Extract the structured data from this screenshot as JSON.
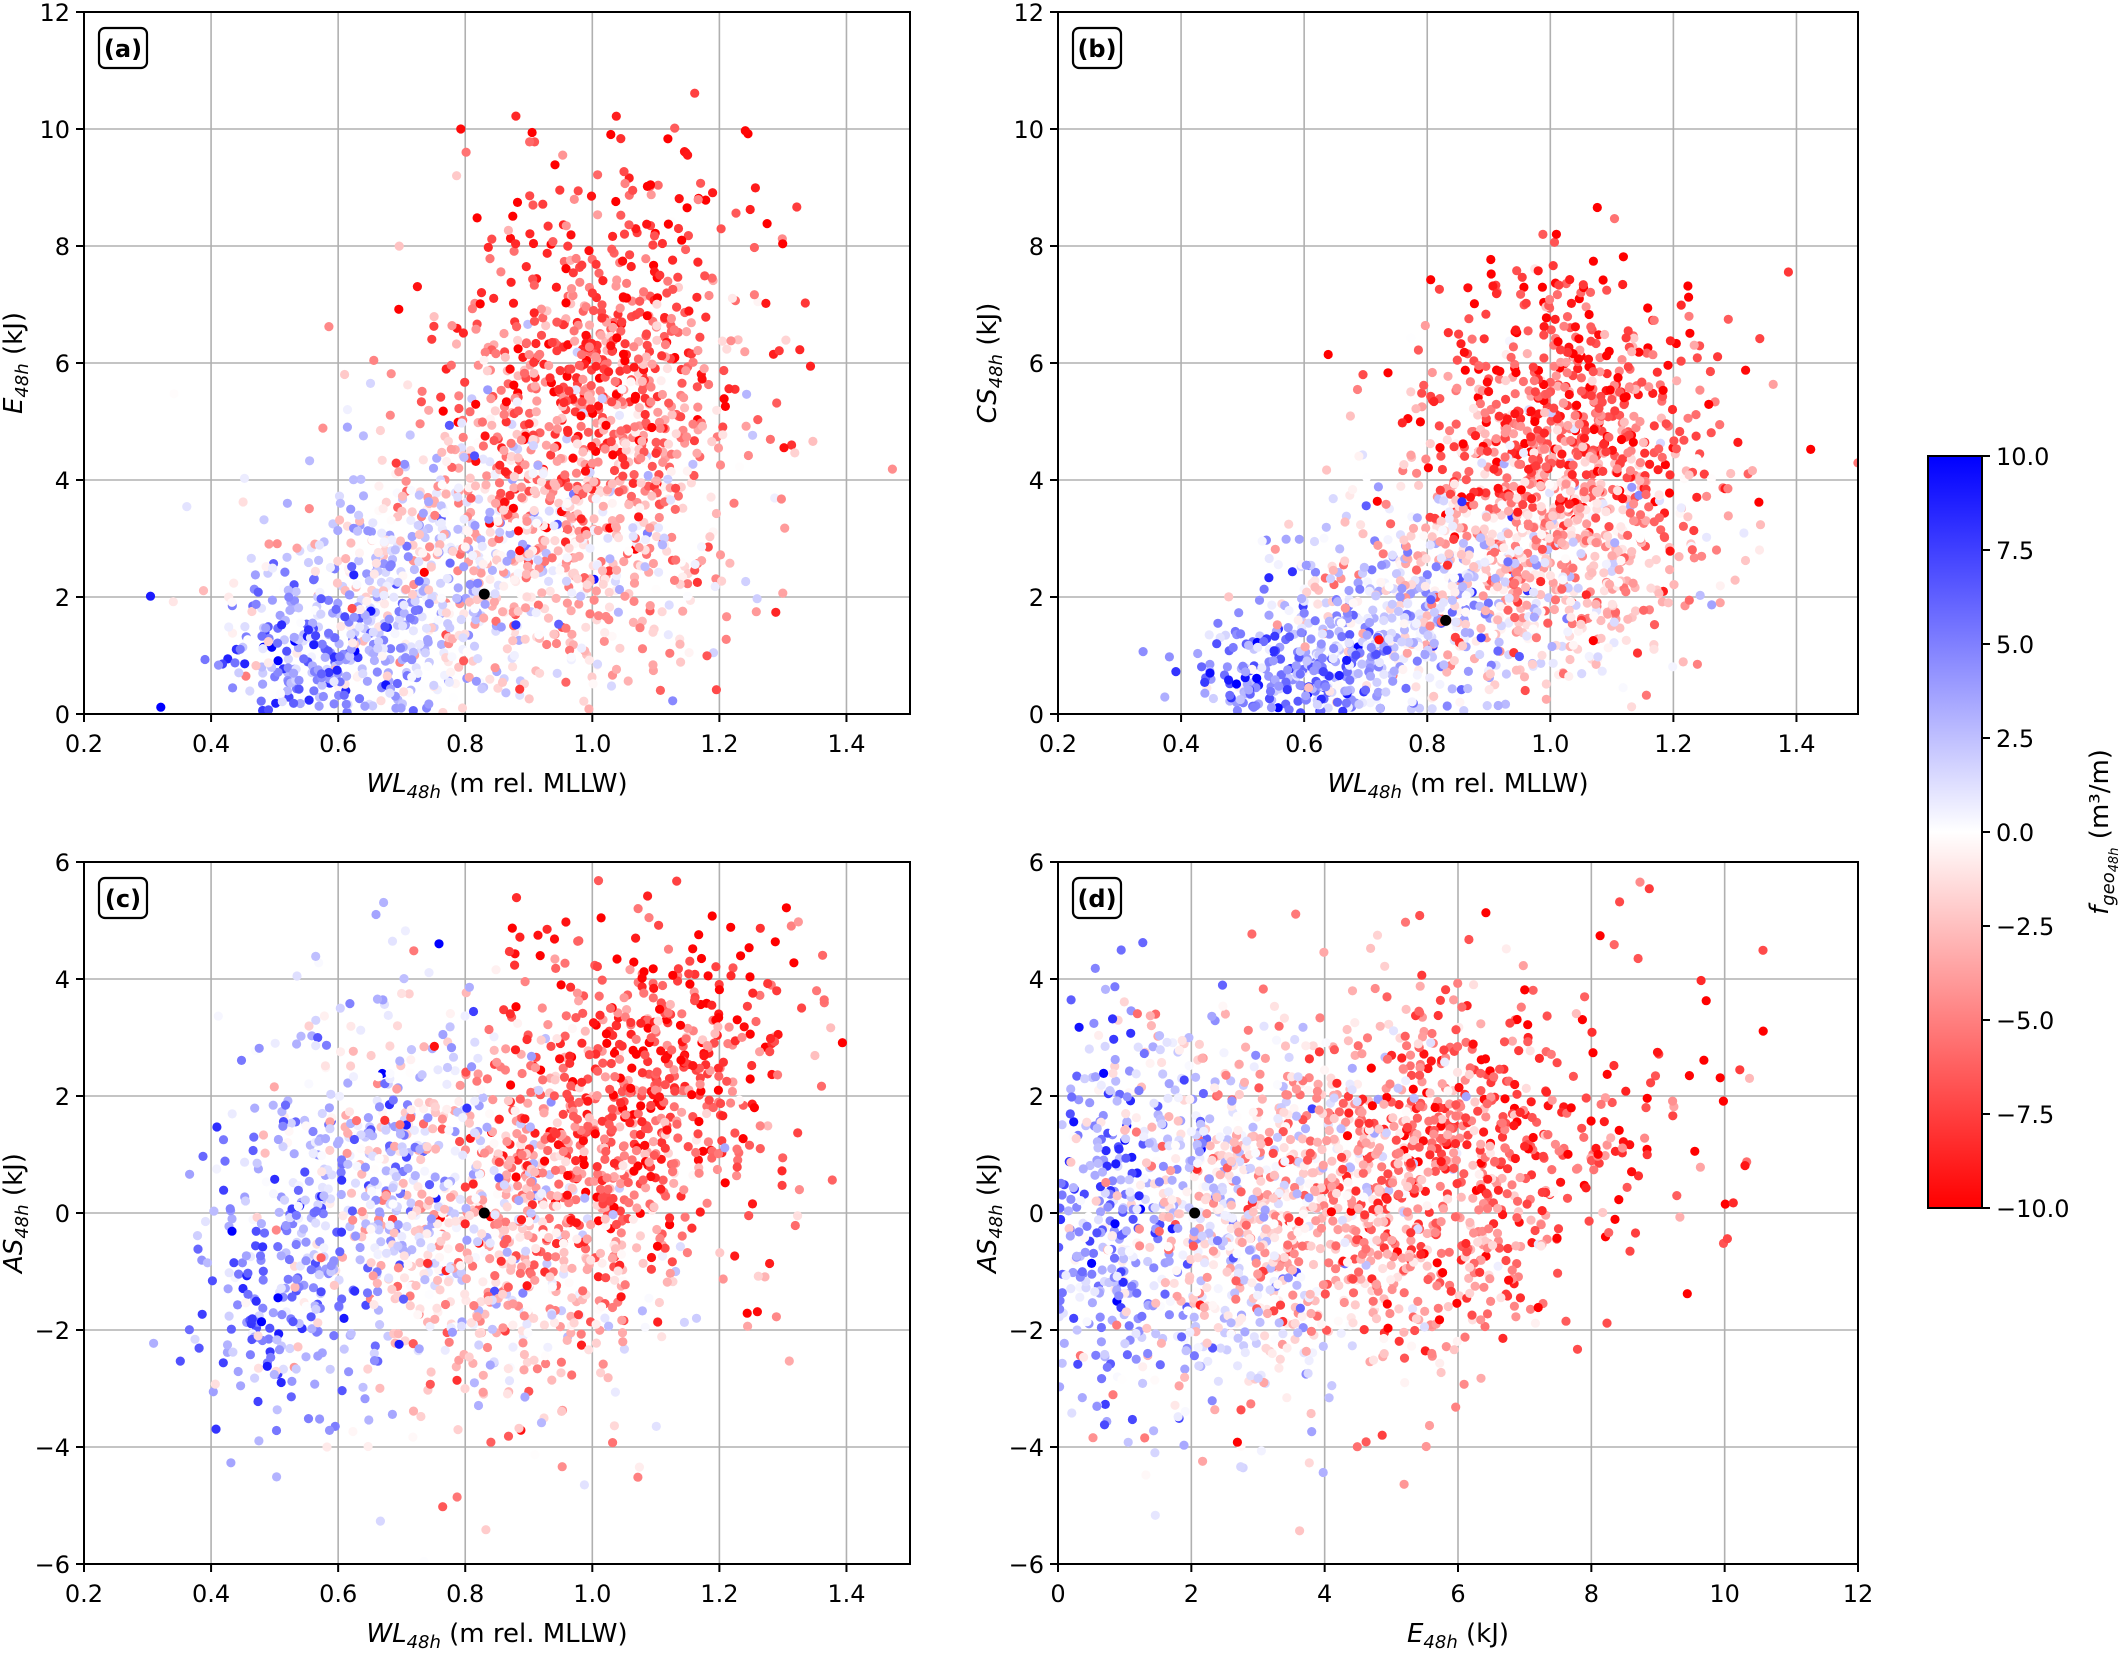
{
  "chart_data": [
    {
      "type": "scatter",
      "panel_label": "(a)",
      "xlabel_main": "WL",
      "xlabel_sub": "48h",
      "xlabel_rest": " (m rel. MLLW)",
      "ylabel_main": "E",
      "ylabel_sub": "48h",
      "ylabel_rest": " (kJ)",
      "xlim": [
        0.2,
        1.5
      ],
      "ylim": [
        0,
        12
      ],
      "xticks": [
        0.2,
        0.4,
        0.6,
        0.8,
        1.0,
        1.2,
        1.4
      ],
      "xtick_labels": [
        "0.2",
        "0.4",
        "0.6",
        "0.8",
        "1.0",
        "1.2",
        "1.4"
      ],
      "yticks": [
        0,
        2,
        4,
        6,
        8,
        10,
        12
      ],
      "ytick_labels": [
        "0",
        "2",
        "4",
        "6",
        "8",
        "10",
        "12"
      ],
      "grid": true,
      "highlight_point": {
        "x": 0.83,
        "y": 2.05,
        "color": "#000000"
      },
      "clusters": [
        {
          "cx": 0.58,
          "cy": 1.0,
          "sx": 0.09,
          "sy": 0.7,
          "f": 4.5,
          "n": 260
        },
        {
          "cx": 0.72,
          "cy": 2.3,
          "sx": 0.12,
          "sy": 1.2,
          "f": 1.0,
          "n": 480
        },
        {
          "cx": 0.98,
          "cy": 3.2,
          "sx": 0.13,
          "sy": 1.4,
          "f": -2.5,
          "n": 620
        },
        {
          "cx": 1.0,
          "cy": 5.8,
          "sx": 0.12,
          "sy": 1.3,
          "f": -6.5,
          "n": 560
        },
        {
          "cx": 1.05,
          "cy": 8.6,
          "sx": 0.13,
          "sy": 0.9,
          "f": -8.5,
          "n": 90
        }
      ]
    },
    {
      "type": "scatter",
      "panel_label": "(b)",
      "xlabel_main": "WL",
      "xlabel_sub": "48h",
      "xlabel_rest": " (m rel. MLLW)",
      "ylabel_main": "CS",
      "ylabel_sub": "48h",
      "ylabel_rest": " (kJ)",
      "xlim": [
        0.2,
        1.5
      ],
      "ylim": [
        0,
        12
      ],
      "xticks": [
        0.2,
        0.4,
        0.6,
        0.8,
        1.0,
        1.2,
        1.4
      ],
      "xtick_labels": [
        "0.2",
        "0.4",
        "0.6",
        "0.8",
        "1.0",
        "1.2",
        "1.4"
      ],
      "yticks": [
        0,
        2,
        4,
        6,
        8,
        10,
        12
      ],
      "ytick_labels": [
        "0",
        "2",
        "4",
        "6",
        "8",
        "10",
        "12"
      ],
      "grid": true,
      "highlight_point": {
        "x": 0.83,
        "y": 1.6,
        "color": "#000000"
      },
      "clusters": [
        {
          "cx": 0.58,
          "cy": 0.6,
          "sx": 0.09,
          "sy": 0.5,
          "f": 5.0,
          "n": 240
        },
        {
          "cx": 0.75,
          "cy": 1.6,
          "sx": 0.12,
          "sy": 0.9,
          "f": 1.5,
          "n": 460
        },
        {
          "cx": 0.98,
          "cy": 2.8,
          "sx": 0.13,
          "sy": 1.1,
          "f": -2.5,
          "n": 620
        },
        {
          "cx": 1.02,
          "cy": 4.8,
          "sx": 0.12,
          "sy": 1.0,
          "f": -6.5,
          "n": 560
        },
        {
          "cx": 1.05,
          "cy": 6.9,
          "sx": 0.12,
          "sy": 0.7,
          "f": -8.5,
          "n": 80
        }
      ]
    },
    {
      "type": "scatter",
      "panel_label": "(c)",
      "xlabel_main": "WL",
      "xlabel_sub": "48h",
      "xlabel_rest": " (m rel. MLLW)",
      "ylabel_main": "AS",
      "ylabel_sub": "48h",
      "ylabel_rest": " (kJ)",
      "xlim": [
        0.2,
        1.5
      ],
      "ylim": [
        -6,
        6
      ],
      "xticks": [
        0.2,
        0.4,
        0.6,
        0.8,
        1.0,
        1.2,
        1.4
      ],
      "xtick_labels": [
        "0.2",
        "0.4",
        "0.6",
        "0.8",
        "1.0",
        "1.2",
        "1.4"
      ],
      "yticks": [
        -6,
        -4,
        -2,
        0,
        2,
        4,
        6
      ],
      "ytick_labels": [
        "−6",
        "−4",
        "−2",
        "0",
        "2",
        "4",
        "6"
      ],
      "grid": true,
      "highlight_point": {
        "x": 0.83,
        "y": 0.0,
        "color": "#000000"
      },
      "clusters": [
        {
          "cx": 0.52,
          "cy": -1.2,
          "sx": 0.08,
          "sy": 1.4,
          "f": 4.5,
          "n": 220
        },
        {
          "cx": 0.68,
          "cy": 0.6,
          "sx": 0.11,
          "sy": 1.7,
          "f": 1.5,
          "n": 460
        },
        {
          "cx": 0.88,
          "cy": -0.6,
          "sx": 0.12,
          "sy": 1.6,
          "f": -2.5,
          "n": 520
        },
        {
          "cx": 1.05,
          "cy": 1.6,
          "sx": 0.12,
          "sy": 1.5,
          "f": -6.5,
          "n": 580
        },
        {
          "cx": 1.15,
          "cy": 3.2,
          "sx": 0.1,
          "sy": 1.0,
          "f": -8.5,
          "n": 120
        }
      ]
    },
    {
      "type": "scatter",
      "panel_label": "(d)",
      "xlabel_main": "E",
      "xlabel_sub": "48h",
      "xlabel_rest": " (kJ)",
      "ylabel_main": "AS",
      "ylabel_sub": "48h",
      "ylabel_rest": " (kJ)",
      "xlim": [
        0,
        12
      ],
      "ylim": [
        -6,
        6
      ],
      "xticks": [
        0,
        2,
        4,
        6,
        8,
        10,
        12
      ],
      "xtick_labels": [
        "0",
        "2",
        "4",
        "6",
        "8",
        "10",
        "12"
      ],
      "yticks": [
        -6,
        -4,
        -2,
        0,
        2,
        4,
        6
      ],
      "ytick_labels": [
        "−6",
        "−4",
        "−2",
        "0",
        "2",
        "4",
        "6"
      ],
      "grid": true,
      "highlight_point": {
        "x": 2.05,
        "y": 0.0,
        "color": "#000000"
      },
      "clusters": [
        {
          "cx": 0.7,
          "cy": 0.0,
          "sx": 0.6,
          "sy": 1.8,
          "f": 4.0,
          "n": 280
        },
        {
          "cx": 2.3,
          "cy": -0.3,
          "sx": 1.1,
          "sy": 1.8,
          "f": 0.5,
          "n": 520
        },
        {
          "cx": 4.2,
          "cy": 0.3,
          "sx": 1.3,
          "sy": 1.6,
          "f": -3.0,
          "n": 620
        },
        {
          "cx": 6.0,
          "cy": 0.9,
          "sx": 1.1,
          "sy": 1.4,
          "f": -6.5,
          "n": 500
        },
        {
          "cx": 8.6,
          "cy": 1.8,
          "sx": 1.2,
          "sy": 1.6,
          "f": -8.5,
          "n": 80
        }
      ]
    }
  ],
  "colorbar": {
    "label_main": "f",
    "label_sub1": "geo",
    "label_sub2": "48h",
    "label_unit": " (m³/m)",
    "min": -10,
    "max": 10,
    "colors": {
      "high": "#0000ff",
      "mid": "#ffffff",
      "low": "#ff0000"
    },
    "ticks": [
      10,
      7.5,
      5,
      2.5,
      0,
      -2.5,
      -5,
      -7.5,
      -10
    ],
    "tick_labels": [
      "10.0",
      "7.5",
      "5.0",
      "2.5",
      "0.0",
      "−2.5",
      "−5.0",
      "−7.5",
      "−10.0"
    ]
  }
}
